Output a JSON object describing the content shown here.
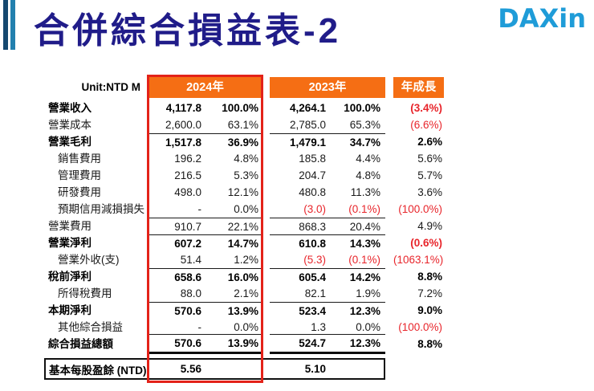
{
  "slide": {
    "title": "合併綜合損益表-2",
    "logo_text": "DAXin"
  },
  "colors": {
    "orange": "#f56e14",
    "red_border": "#e32219",
    "negative_red": "#e8252b",
    "title_navy": "#201c89",
    "logo_blue": "#1f9cd8"
  },
  "table": {
    "unit_label": "Unit:NTD M",
    "col_2024": "2024年",
    "col_2023": "2023年",
    "col_growth": "年成長",
    "rows": [
      {
        "label": "營業收入",
        "indent": false,
        "bold": true,
        "topline": false,
        "v2024": "4,117.8",
        "p2024": "100.0%",
        "v2023": "4,264.1",
        "p2023": "100.0%",
        "growth": "(3.4%)",
        "red": [
          "growth"
        ]
      },
      {
        "label": "營業成本",
        "indent": false,
        "bold": false,
        "topline": false,
        "v2024": "2,600.0",
        "p2024": "63.1%",
        "v2023": "2,785.0",
        "p2023": "65.3%",
        "growth": "(6.6%)",
        "red": [
          "growth"
        ]
      },
      {
        "label": "營業毛利",
        "indent": false,
        "bold": true,
        "topline": true,
        "v2024": "1,517.8",
        "p2024": "36.9%",
        "v2023": "1,479.1",
        "p2023": "34.7%",
        "growth": "2.6%",
        "red": []
      },
      {
        "label": "銷售費用",
        "indent": true,
        "bold": false,
        "topline": false,
        "v2024": "196.2",
        "p2024": "4.8%",
        "v2023": "185.8",
        "p2023": "4.4%",
        "growth": "5.6%",
        "red": []
      },
      {
        "label": "管理費用",
        "indent": true,
        "bold": false,
        "topline": false,
        "v2024": "216.5",
        "p2024": "5.3%",
        "v2023": "204.7",
        "p2023": "4.8%",
        "growth": "5.7%",
        "red": []
      },
      {
        "label": "研發費用",
        "indent": true,
        "bold": false,
        "topline": false,
        "v2024": "498.0",
        "p2024": "12.1%",
        "v2023": "480.8",
        "p2023": "11.3%",
        "growth": "3.6%",
        "red": []
      },
      {
        "label": "預期信用減損損失",
        "indent": true,
        "bold": false,
        "topline": false,
        "v2024": "-",
        "p2024": "0.0%",
        "v2023": "(3.0)",
        "p2023": "(0.1%)",
        "growth": "(100.0%)",
        "red": [
          "v2023",
          "p2023",
          "growth"
        ]
      },
      {
        "label": "營業費用",
        "indent": false,
        "bold": false,
        "topline": true,
        "v2024": "910.7",
        "p2024": "22.1%",
        "v2023": "868.3",
        "p2023": "20.4%",
        "growth": "4.9%",
        "red": []
      },
      {
        "label": "營業淨利",
        "indent": false,
        "bold": true,
        "topline": true,
        "v2024": "607.2",
        "p2024": "14.7%",
        "v2023": "610.8",
        "p2023": "14.3%",
        "growth": "(0.6%)",
        "red": [
          "growth"
        ]
      },
      {
        "label": "營業外收(支)",
        "indent": true,
        "bold": false,
        "topline": false,
        "v2024": "51.4",
        "p2024": "1.2%",
        "v2023": "(5.3)",
        "p2023": "(0.1%)",
        "growth": "(1063.1%)",
        "red": [
          "v2023",
          "p2023",
          "growth"
        ]
      },
      {
        "label": "稅前淨利",
        "indent": false,
        "bold": true,
        "topline": true,
        "v2024": "658.6",
        "p2024": "16.0%",
        "v2023": "605.4",
        "p2023": "14.2%",
        "growth": "8.8%",
        "red": []
      },
      {
        "label": "所得稅費用",
        "indent": true,
        "bold": false,
        "topline": false,
        "v2024": "88.0",
        "p2024": "2.1%",
        "v2023": "82.1",
        "p2023": "1.9%",
        "growth": "7.2%",
        "red": []
      },
      {
        "label": "本期淨利",
        "indent": false,
        "bold": true,
        "topline": true,
        "v2024": "570.6",
        "p2024": "13.9%",
        "v2023": "523.4",
        "p2023": "12.3%",
        "growth": "9.0%",
        "red": []
      },
      {
        "label": "其他綜合損益",
        "indent": true,
        "bold": false,
        "topline": false,
        "v2024": "-",
        "p2024": "0.0%",
        "v2023": "1.3",
        "p2023": "0.0%",
        "growth": "(100.0%)",
        "red": [
          "growth"
        ]
      },
      {
        "label": "綜合損益總額",
        "indent": false,
        "bold": true,
        "topline": true,
        "thickbottom": true,
        "v2024": "570.6",
        "p2024": "13.9%",
        "v2023": "524.7",
        "p2023": "12.3%",
        "growth": "8.8%",
        "red": []
      }
    ],
    "eps": {
      "label": "基本每股盈餘 (NTD)",
      "v2024": "5.56",
      "v2023": "5.10"
    }
  }
}
